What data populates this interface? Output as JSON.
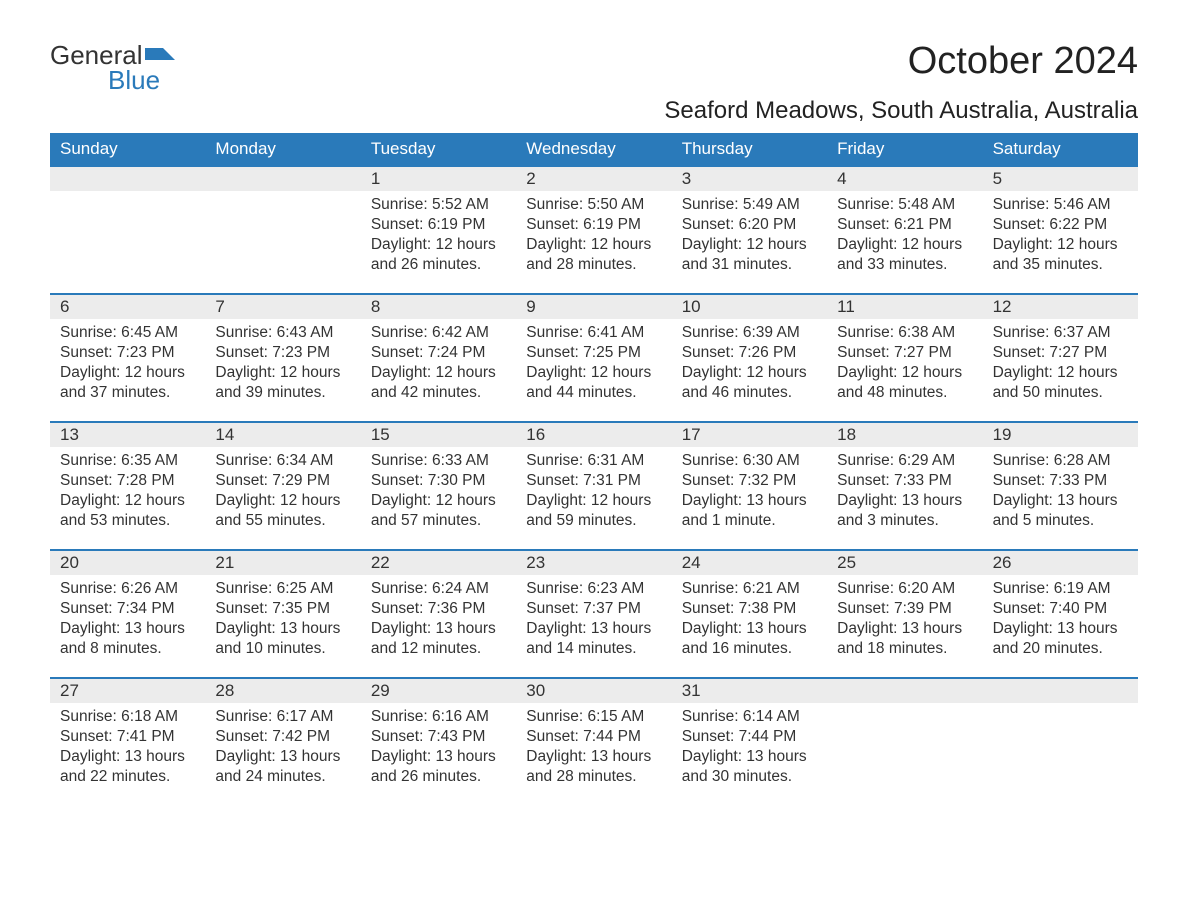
{
  "logo": {
    "text_general": "General",
    "text_blue": "Blue",
    "icon_color": "#2a7aba",
    "text_color_dark": "#333333",
    "text_color_blue": "#2a7aba"
  },
  "title": "October 2024",
  "location": "Seaford Meadows, South Australia, Australia",
  "colors": {
    "header_bg": "#2a7aba",
    "header_text": "#ffffff",
    "daynum_bg": "#ececec",
    "daynum_border_top": "#2a7aba",
    "body_text": "#333333",
    "background": "#ffffff"
  },
  "typography": {
    "title_fontsize": 38,
    "location_fontsize": 24,
    "weekday_fontsize": 17,
    "daynum_fontsize": 17,
    "body_fontsize": 15.5,
    "font_family": "Arial"
  },
  "layout": {
    "columns": 7,
    "rows": 5,
    "cell_min_height": 128
  },
  "weekdays": [
    "Sunday",
    "Monday",
    "Tuesday",
    "Wednesday",
    "Thursday",
    "Friday",
    "Saturday"
  ],
  "weeks": [
    [
      {
        "day": "",
        "sunrise": "",
        "sunset": "",
        "daylight": ""
      },
      {
        "day": "",
        "sunrise": "",
        "sunset": "",
        "daylight": ""
      },
      {
        "day": "1",
        "sunrise": "Sunrise: 5:52 AM",
        "sunset": "Sunset: 6:19 PM",
        "daylight": "Daylight: 12 hours and 26 minutes."
      },
      {
        "day": "2",
        "sunrise": "Sunrise: 5:50 AM",
        "sunset": "Sunset: 6:19 PM",
        "daylight": "Daylight: 12 hours and 28 minutes."
      },
      {
        "day": "3",
        "sunrise": "Sunrise: 5:49 AM",
        "sunset": "Sunset: 6:20 PM",
        "daylight": "Daylight: 12 hours and 31 minutes."
      },
      {
        "day": "4",
        "sunrise": "Sunrise: 5:48 AM",
        "sunset": "Sunset: 6:21 PM",
        "daylight": "Daylight: 12 hours and 33 minutes."
      },
      {
        "day": "5",
        "sunrise": "Sunrise: 5:46 AM",
        "sunset": "Sunset: 6:22 PM",
        "daylight": "Daylight: 12 hours and 35 minutes."
      }
    ],
    [
      {
        "day": "6",
        "sunrise": "Sunrise: 6:45 AM",
        "sunset": "Sunset: 7:23 PM",
        "daylight": "Daylight: 12 hours and 37 minutes."
      },
      {
        "day": "7",
        "sunrise": "Sunrise: 6:43 AM",
        "sunset": "Sunset: 7:23 PM",
        "daylight": "Daylight: 12 hours and 39 minutes."
      },
      {
        "day": "8",
        "sunrise": "Sunrise: 6:42 AM",
        "sunset": "Sunset: 7:24 PM",
        "daylight": "Daylight: 12 hours and 42 minutes."
      },
      {
        "day": "9",
        "sunrise": "Sunrise: 6:41 AM",
        "sunset": "Sunset: 7:25 PM",
        "daylight": "Daylight: 12 hours and 44 minutes."
      },
      {
        "day": "10",
        "sunrise": "Sunrise: 6:39 AM",
        "sunset": "Sunset: 7:26 PM",
        "daylight": "Daylight: 12 hours and 46 minutes."
      },
      {
        "day": "11",
        "sunrise": "Sunrise: 6:38 AM",
        "sunset": "Sunset: 7:27 PM",
        "daylight": "Daylight: 12 hours and 48 minutes."
      },
      {
        "day": "12",
        "sunrise": "Sunrise: 6:37 AM",
        "sunset": "Sunset: 7:27 PM",
        "daylight": "Daylight: 12 hours and 50 minutes."
      }
    ],
    [
      {
        "day": "13",
        "sunrise": "Sunrise: 6:35 AM",
        "sunset": "Sunset: 7:28 PM",
        "daylight": "Daylight: 12 hours and 53 minutes."
      },
      {
        "day": "14",
        "sunrise": "Sunrise: 6:34 AM",
        "sunset": "Sunset: 7:29 PM",
        "daylight": "Daylight: 12 hours and 55 minutes."
      },
      {
        "day": "15",
        "sunrise": "Sunrise: 6:33 AM",
        "sunset": "Sunset: 7:30 PM",
        "daylight": "Daylight: 12 hours and 57 minutes."
      },
      {
        "day": "16",
        "sunrise": "Sunrise: 6:31 AM",
        "sunset": "Sunset: 7:31 PM",
        "daylight": "Daylight: 12 hours and 59 minutes."
      },
      {
        "day": "17",
        "sunrise": "Sunrise: 6:30 AM",
        "sunset": "Sunset: 7:32 PM",
        "daylight": "Daylight: 13 hours and 1 minute."
      },
      {
        "day": "18",
        "sunrise": "Sunrise: 6:29 AM",
        "sunset": "Sunset: 7:33 PM",
        "daylight": "Daylight: 13 hours and 3 minutes."
      },
      {
        "day": "19",
        "sunrise": "Sunrise: 6:28 AM",
        "sunset": "Sunset: 7:33 PM",
        "daylight": "Daylight: 13 hours and 5 minutes."
      }
    ],
    [
      {
        "day": "20",
        "sunrise": "Sunrise: 6:26 AM",
        "sunset": "Sunset: 7:34 PM",
        "daylight": "Daylight: 13 hours and 8 minutes."
      },
      {
        "day": "21",
        "sunrise": "Sunrise: 6:25 AM",
        "sunset": "Sunset: 7:35 PM",
        "daylight": "Daylight: 13 hours and 10 minutes."
      },
      {
        "day": "22",
        "sunrise": "Sunrise: 6:24 AM",
        "sunset": "Sunset: 7:36 PM",
        "daylight": "Daylight: 13 hours and 12 minutes."
      },
      {
        "day": "23",
        "sunrise": "Sunrise: 6:23 AM",
        "sunset": "Sunset: 7:37 PM",
        "daylight": "Daylight: 13 hours and 14 minutes."
      },
      {
        "day": "24",
        "sunrise": "Sunrise: 6:21 AM",
        "sunset": "Sunset: 7:38 PM",
        "daylight": "Daylight: 13 hours and 16 minutes."
      },
      {
        "day": "25",
        "sunrise": "Sunrise: 6:20 AM",
        "sunset": "Sunset: 7:39 PM",
        "daylight": "Daylight: 13 hours and 18 minutes."
      },
      {
        "day": "26",
        "sunrise": "Sunrise: 6:19 AM",
        "sunset": "Sunset: 7:40 PM",
        "daylight": "Daylight: 13 hours and 20 minutes."
      }
    ],
    [
      {
        "day": "27",
        "sunrise": "Sunrise: 6:18 AM",
        "sunset": "Sunset: 7:41 PM",
        "daylight": "Daylight: 13 hours and 22 minutes."
      },
      {
        "day": "28",
        "sunrise": "Sunrise: 6:17 AM",
        "sunset": "Sunset: 7:42 PM",
        "daylight": "Daylight: 13 hours and 24 minutes."
      },
      {
        "day": "29",
        "sunrise": "Sunrise: 6:16 AM",
        "sunset": "Sunset: 7:43 PM",
        "daylight": "Daylight: 13 hours and 26 minutes."
      },
      {
        "day": "30",
        "sunrise": "Sunrise: 6:15 AM",
        "sunset": "Sunset: 7:44 PM",
        "daylight": "Daylight: 13 hours and 28 minutes."
      },
      {
        "day": "31",
        "sunrise": "Sunrise: 6:14 AM",
        "sunset": "Sunset: 7:44 PM",
        "daylight": "Daylight: 13 hours and 30 minutes."
      },
      {
        "day": "",
        "sunrise": "",
        "sunset": "",
        "daylight": ""
      },
      {
        "day": "",
        "sunrise": "",
        "sunset": "",
        "daylight": ""
      }
    ]
  ]
}
